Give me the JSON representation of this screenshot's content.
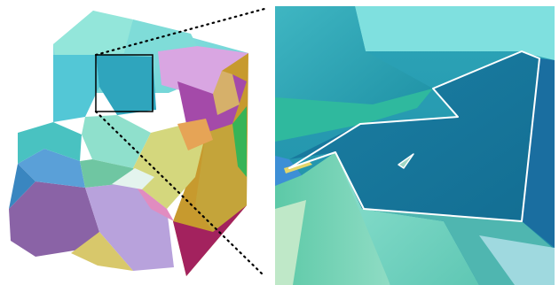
{
  "figure": {
    "panels": [
      {
        "kind": "3d-polycrystal-render",
        "description_name": "voronoi-grain-cube"
      },
      {
        "kind": "zoomed-detail",
        "description_name": "magnified-region"
      }
    ],
    "colors": {
      "outline": "#ffffff",
      "zoom_box": "#000000",
      "connector": "#000000"
    }
  }
}
